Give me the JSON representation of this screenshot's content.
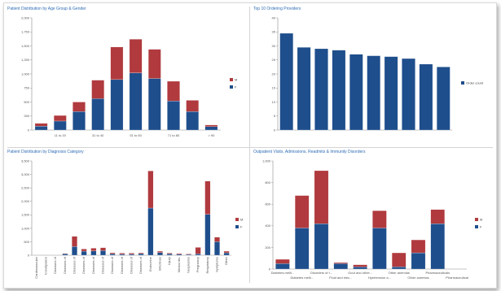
{
  "colors": {
    "series_red": "#b03a3e",
    "series_blue": "#1f4e8c",
    "axis": "#8c8c8c",
    "grid": "#e6e6e6"
  },
  "chart_data": [
    {
      "id": "age-gender",
      "type": "bar",
      "stacked": true,
      "title": "Patient Distribution by Age Group & Gender",
      "categories": [
        "0 to 10",
        "11 to 20",
        "21 to 30",
        "31 to 40",
        "41 to 50",
        "51 to 60",
        "61 to 70",
        "71 to 80",
        "81 to 90",
        "> 90"
      ],
      "x_tick_labels": [
        "11 to 20",
        "31 to 40",
        "51 to 60",
        "71 to 80",
        "> 90"
      ],
      "series": [
        {
          "name": "F",
          "color": "#1f4e8c",
          "values": [
            70,
            160,
            330,
            560,
            900,
            1020,
            920,
            520,
            330,
            60
          ]
        },
        {
          "name": "M",
          "color": "#b03a3e",
          "values": [
            50,
            100,
            170,
            330,
            580,
            600,
            520,
            350,
            200,
            30
          ]
        }
      ],
      "ylim": [
        0,
        2000
      ],
      "yticks": [
        0,
        250,
        500,
        750,
        1000,
        1250,
        1500,
        1750,
        2000
      ],
      "ytick_labels": [
        "0",
        "250",
        "500",
        "750",
        "1,000",
        "1,250",
        "1,500",
        "1,750",
        "2,000"
      ],
      "legend": "right",
      "grid": false
    },
    {
      "id": "providers",
      "type": "bar",
      "title": "Top 10 Ordering Providers",
      "categories": [
        "",
        "",
        "",
        "",
        "",
        "",
        "",
        "",
        "",
        ""
      ],
      "series": [
        {
          "name": "Order count",
          "color": "#1f4e8c",
          "values": [
            34.5,
            29.5,
            29,
            28.5,
            27,
            26.5,
            26.2,
            25.5,
            23.5,
            22.5
          ]
        }
      ],
      "ylim": [
        0,
        40
      ],
      "yticks": [
        0,
        5,
        10,
        15,
        20,
        25,
        30,
        35,
        40
      ],
      "ytick_labels": [
        "0",
        "5",
        "10",
        "15",
        "20",
        "25",
        "30",
        "35",
        "40"
      ],
      "legend": "right",
      "grid": false
    },
    {
      "id": "diagnosis",
      "type": "bar",
      "stacked": true,
      "title": "Patient Distribution by Diagnosis Category",
      "categories": [
        "Cardiovascular",
        "Constipation",
        "Diseases of",
        "Diseases of",
        "Diseases of",
        "Diseases of",
        "Diseases of",
        "Diseases of",
        "Diseases of",
        "Diseases of",
        "Diseases of",
        "Diseases of",
        "Endocrine",
        "Infectious",
        "Injury",
        "Mental dis.",
        "Neoplasms",
        "Pregnancy",
        "Respiratory",
        "Symptoms",
        "Other"
      ],
      "series": [
        {
          "name": "F",
          "color": "#1f4e8c",
          "values": [
            0,
            0,
            0,
            50,
            320,
            150,
            160,
            170,
            50,
            40,
            40,
            60,
            1750,
            100,
            50,
            40,
            30,
            50,
            1520,
            500,
            90
          ]
        },
        {
          "name": "M",
          "color": "#b03a3e",
          "values": [
            0,
            0,
            0,
            20,
            380,
            80,
            100,
            110,
            40,
            40,
            40,
            30,
            1380,
            50,
            30,
            30,
            20,
            240,
            1230,
            170,
            60
          ]
        }
      ],
      "ylim": [
        0,
        3500
      ],
      "yticks": [
        0,
        500,
        1000,
        1500,
        2000,
        2500,
        3000,
        3500
      ],
      "ytick_labels": [
        "0",
        "500",
        "1,000",
        "1,500",
        "2,000",
        "2,500",
        "3,000",
        "3,500"
      ],
      "legend": "right",
      "grid": false
    },
    {
      "id": "encounters",
      "type": "bar",
      "stacked": true,
      "title": "Outpatient Visits, Admissions, Readmits & Immunity Disorders",
      "categories": [
        "Diabetes melli...",
        "Diabetes melli...",
        "Disorders of t...",
        "Fluid and elec...",
        "Gout and other...",
        "Hyertension a...",
        "Other anemias",
        "Other anemias",
        "Pharmaceuticals",
        "Pharmaceutical"
      ],
      "x_tick_labels_row1": [
        "Diabetes melli...",
        "Disorders of t...",
        "Gout and other...",
        "Other anemias",
        "Pharmaceuticals"
      ],
      "x_tick_labels_row2": [
        "Diabetes melli...",
        "Fluid and elec...",
        "Hyertension a...",
        "Other anemias",
        "Pharmaceutical"
      ],
      "series": [
        {
          "name": "F",
          "color": "#1f4e8c",
          "values": [
            50,
            380,
            420,
            50,
            20,
            380,
            20,
            150,
            420,
            0
          ]
        },
        {
          "name": "M",
          "color": "#b03a3e",
          "values": [
            40,
            300,
            490,
            10,
            20,
            160,
            130,
            120,
            130,
            0
          ]
        }
      ],
      "ylim": [
        0,
        1000
      ],
      "yticks": [
        0,
        200,
        400,
        600,
        800,
        1000
      ],
      "ytick_labels": [
        "0",
        "200",
        "400",
        "600",
        "800",
        "1,000"
      ],
      "legend": "right",
      "grid": false
    }
  ]
}
